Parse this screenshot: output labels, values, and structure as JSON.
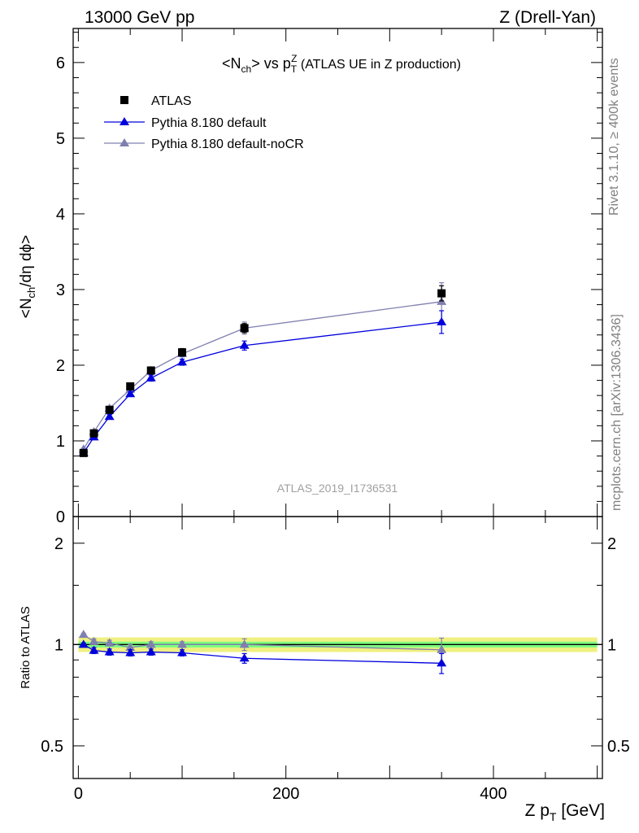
{
  "header": {
    "left": "13000 GeV pp",
    "right": "Z (Drell-Yan)"
  },
  "side_labels": {
    "rivet": "Rivet 3.1.10, ≥ 400k events",
    "mcplots": "mcplots.cern.ch [arXiv:1306.3436]"
  },
  "watermark": "ATLAS_2019_I1736531",
  "colors": {
    "atlas": "#000000",
    "default": "#0000dd",
    "nocr": "#8080b0",
    "band_outer": "#f0f080",
    "band_inner": "#80ff80"
  },
  "chart_data": [
    {
      "type": "scatter",
      "title": {
        "pre": "<N",
        "sub1": "ch",
        "mid": "> vs p",
        "sub2": "T",
        "sup": "Z",
        "post": " (ATLAS UE in Z production)"
      },
      "ylabel": {
        "pre": "<N",
        "sub": "ch",
        "post": "/dη dϕ>"
      },
      "xlim": [
        -5,
        505
      ],
      "ylim": [
        0,
        6.45
      ],
      "yticks": [
        0,
        1,
        2,
        3,
        4,
        5,
        6
      ],
      "ytick_labels": [
        "0",
        "1",
        "2",
        "3",
        "4",
        "5",
        "6"
      ],
      "legend_placement": "top-left",
      "series": [
        {
          "name": "ATLAS",
          "marker": "square",
          "x": [
            5,
            15,
            30,
            50,
            70,
            100,
            160,
            350
          ],
          "y": [
            0.84,
            1.1,
            1.41,
            1.72,
            1.93,
            2.17,
            2.49,
            2.95
          ],
          "err": [
            0.02,
            0.03,
            0.03,
            0.04,
            0.04,
            0.05,
            0.06,
            0.1
          ]
        },
        {
          "name": "Pythia 8.180 default",
          "marker": "triangle",
          "x": [
            5,
            15,
            30,
            50,
            70,
            100,
            160,
            350
          ],
          "y": [
            0.84,
            1.05,
            1.32,
            1.62,
            1.83,
            2.04,
            2.26,
            2.57
          ],
          "err": [
            0.01,
            0.02,
            0.03,
            0.03,
            0.04,
            0.04,
            0.06,
            0.15
          ]
        },
        {
          "name": "Pythia 8.180 default-noCR",
          "marker": "triangle",
          "x": [
            5,
            15,
            30,
            50,
            70,
            100,
            160,
            350
          ],
          "y": [
            0.89,
            1.12,
            1.43,
            1.68,
            1.93,
            2.15,
            2.49,
            2.84
          ],
          "err": [
            0.01,
            0.02,
            0.03,
            0.03,
            0.04,
            0.04,
            0.08,
            0.25
          ]
        }
      ]
    },
    {
      "type": "scatter",
      "ylabel": "Ratio to ATLAS",
      "xlabel": {
        "pre": "Z p",
        "sub": "T",
        "post": " [GeV]"
      },
      "xlim": [
        -5,
        505
      ],
      "xticks": [
        0,
        200,
        400
      ],
      "xtick_labels": [
        "0",
        "200",
        "400"
      ],
      "ylim": [
        0.4,
        2.4
      ],
      "yscale": "log",
      "yticks": [
        0.5,
        1,
        2
      ],
      "ytick_labels": [
        "0.5",
        "1",
        "2"
      ],
      "band": {
        "outer": 0.05,
        "inner": 0.02
      },
      "series": [
        {
          "name": "Pythia 8.180 default",
          "x": [
            5,
            15,
            30,
            50,
            70,
            100,
            160,
            350
          ],
          "y": [
            1.0,
            0.96,
            0.95,
            0.945,
            0.95,
            0.945,
            0.91,
            0.88
          ],
          "err": [
            0.01,
            0.02,
            0.02,
            0.02,
            0.02,
            0.02,
            0.03,
            0.06
          ]
        },
        {
          "name": "Pythia 8.180 default-noCR",
          "x": [
            5,
            15,
            30,
            50,
            70,
            100,
            160,
            350
          ],
          "y": [
            1.07,
            1.02,
            1.01,
            0.98,
            1.0,
            1.0,
            1.0,
            0.965
          ],
          "err": [
            0.01,
            0.02,
            0.02,
            0.02,
            0.02,
            0.02,
            0.04,
            0.08
          ]
        }
      ]
    }
  ]
}
